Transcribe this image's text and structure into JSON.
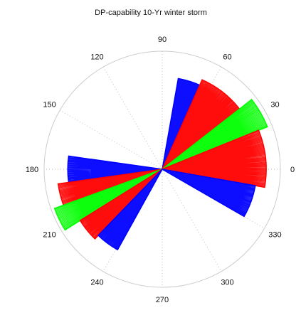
{
  "chart_data": {
    "type": "polar-rose",
    "title": "DP-capability 10-Yr winter storm",
    "angular_unit": "degrees",
    "angle_direction": "counterclockwise",
    "zero_direction": "right",
    "angular_ticks": [
      "0",
      "30",
      "60",
      "90",
      "120",
      "150",
      "180",
      "210",
      "240",
      "270",
      "300",
      "330"
    ],
    "radial_range": [
      0,
      1
    ],
    "grid": true,
    "colors": {
      "blue": "#0000ff",
      "red": "#ff0000",
      "green": "#00ff00",
      "grid": "#bbbbbb",
      "outline": "#cccccc"
    },
    "sectors": [
      {
        "color": "blue",
        "angle_start": 66,
        "angle_end": 80,
        "radius": 0.78
      },
      {
        "color": "red",
        "angle_start": 38,
        "angle_end": 66,
        "radius": 0.83
      },
      {
        "color": "green",
        "angle_start": 22,
        "angle_end": 38,
        "radius": 0.96
      },
      {
        "color": "red",
        "angle_start": 350,
        "angle_end": 22,
        "radius": 0.88
      },
      {
        "color": "blue",
        "angle_start": 330,
        "angle_end": 350,
        "radius": 0.8
      },
      {
        "color": "blue",
        "angle_start": 172,
        "angle_end": 188,
        "radius": 0.8
      },
      {
        "color": "red",
        "angle_start": 188,
        "angle_end": 200,
        "radius": 0.89
      },
      {
        "color": "green",
        "angle_start": 200,
        "angle_end": 212,
        "radius": 0.97
      },
      {
        "color": "red",
        "angle_start": 212,
        "angle_end": 226,
        "radius": 0.82
      },
      {
        "color": "blue",
        "angle_start": 226,
        "angle_end": 241,
        "radius": 0.78
      }
    ]
  }
}
